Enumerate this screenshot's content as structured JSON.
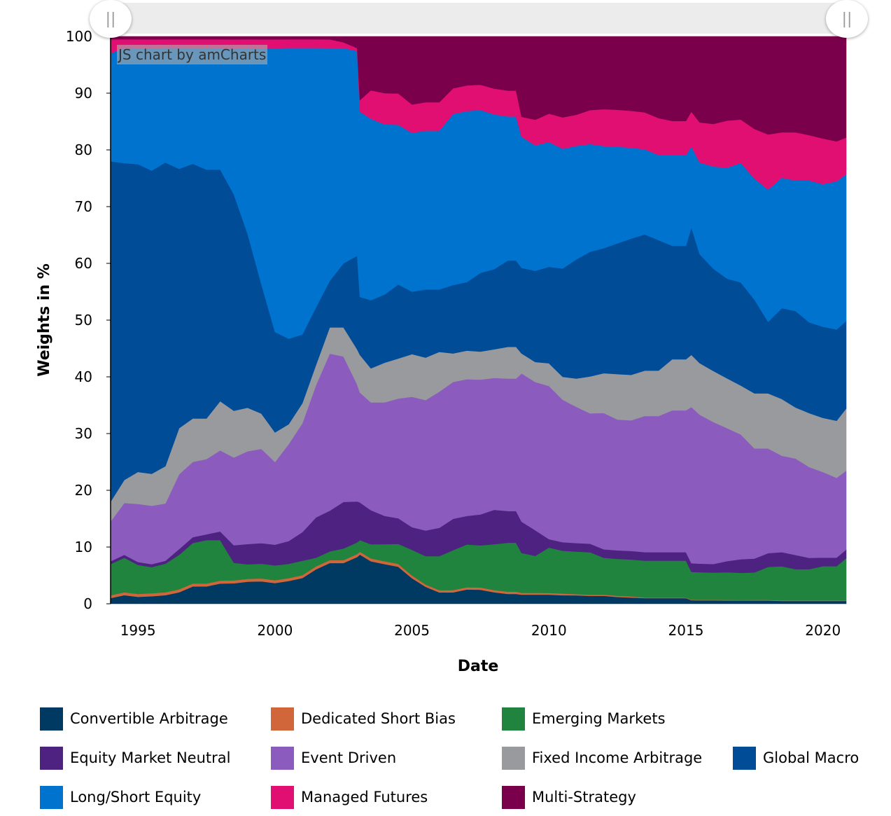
{
  "chart_data": {
    "type": "area",
    "stacked": true,
    "xlabel": "Date",
    "ylabel": "Weights in %",
    "xlim": [
      1994.0,
      2020.85
    ],
    "ylim": [
      0,
      100
    ],
    "xticks": [
      1995,
      2000,
      2005,
      2010,
      2015,
      2020
    ],
    "yticks": [
      0,
      10,
      20,
      30,
      40,
      50,
      60,
      70,
      80,
      90,
      100
    ],
    "legend_position": "bottom",
    "credit": "JS chart by amCharts",
    "x": [
      1994.0,
      1994.5,
      1995.0,
      1995.5,
      1996.0,
      1996.5,
      1997.0,
      1997.5,
      1998.0,
      1998.5,
      1999.0,
      1999.5,
      2000.0,
      2000.5,
      2001.0,
      2001.5,
      2002.0,
      2002.5,
      2003.0,
      2003.1,
      2003.5,
      2004.0,
      2004.5,
      2005.0,
      2005.5,
      2006.0,
      2006.5,
      2007.0,
      2007.5,
      2008.0,
      2008.5,
      2008.8,
      2009.0,
      2009.5,
      2010.0,
      2010.5,
      2011.0,
      2011.5,
      2012.0,
      2012.5,
      2013.0,
      2013.5,
      2014.0,
      2014.5,
      2015.0,
      2015.2,
      2015.5,
      2016.0,
      2016.5,
      2017.0,
      2017.5,
      2018.0,
      2018.5,
      2019.0,
      2019.5,
      2020.0,
      2020.5,
      2020.85
    ],
    "series": [
      {
        "name": "Convertible Arbitrage",
        "color": "#003a63",
        "values": [
          1.0,
          1.5,
          1.2,
          1.3,
          1.5,
          2.0,
          3.0,
          3.0,
          3.5,
          3.5,
          3.8,
          3.8,
          3.5,
          4.0,
          4.5,
          6.0,
          7.0,
          7.0,
          8.0,
          8.5,
          7.5,
          7.0,
          6.5,
          4.5,
          3.0,
          2.0,
          2.0,
          2.5,
          2.5,
          2.0,
          1.7,
          1.7,
          1.6,
          1.6,
          1.6,
          1.5,
          1.5,
          1.4,
          1.4,
          1.2,
          1.1,
          1.0,
          1.0,
          1.0,
          1.0,
          0.6,
          0.6,
          0.6,
          0.6,
          0.6,
          0.6,
          0.6,
          0.5,
          0.5,
          0.5,
          0.5,
          0.5,
          0.5
        ]
      },
      {
        "name": "Dedicated Short Bias",
        "color": "#d1663a",
        "values": [
          0.5,
          0.5,
          0.5,
          0.5,
          0.5,
          0.5,
          0.5,
          0.5,
          0.5,
          0.5,
          0.5,
          0.5,
          0.5,
          0.5,
          0.5,
          0.5,
          0.5,
          0.5,
          0.5,
          0.5,
          0.5,
          0.5,
          0.5,
          0.5,
          0.4,
          0.4,
          0.4,
          0.4,
          0.4,
          0.4,
          0.4,
          0.4,
          0.3,
          0.3,
          0.3,
          0.3,
          0.2,
          0.2,
          0.2,
          0.2,
          0.2,
          0.1,
          0.1,
          0.1,
          0.1,
          0.1,
          0.1,
          0.1,
          0.1,
          0.1,
          0.1,
          0.1,
          0.1,
          0.1,
          0.1,
          0.1,
          0.1,
          0.1
        ]
      },
      {
        "name": "Emerging Markets",
        "color": "#20833e",
        "values": [
          5.5,
          6.0,
          5.0,
          4.5,
          5.0,
          6.0,
          7.0,
          7.5,
          7.0,
          3.0,
          2.5,
          2.5,
          2.5,
          2.5,
          2.5,
          1.5,
          1.5,
          2.0,
          2.0,
          2.0,
          2.5,
          3.0,
          3.5,
          4.5,
          5.0,
          6.0,
          7.0,
          7.5,
          7.5,
          8.0,
          8.5,
          8.5,
          7.0,
          6.5,
          8.0,
          7.5,
          7.5,
          7.5,
          6.5,
          6.5,
          6.5,
          6.5,
          6.5,
          6.5,
          6.5,
          4.8,
          4.8,
          4.8,
          5.0,
          5.0,
          5.0,
          6.0,
          6.0,
          5.5,
          5.5,
          6.0,
          6.0,
          7.5
        ]
      },
      {
        "name": "Equity Market Neutral",
        "color": "#4e2280",
        "values": [
          0.5,
          0.5,
          0.5,
          0.5,
          0.5,
          1.0,
          1.0,
          1.0,
          1.5,
          3.0,
          3.5,
          3.5,
          3.5,
          4.0,
          5.0,
          7.0,
          7.0,
          8.0,
          7.0,
          6.5,
          6.0,
          5.0,
          4.5,
          4.0,
          4.5,
          5.0,
          5.5,
          5.0,
          5.5,
          6.0,
          5.5,
          5.5,
          5.5,
          4.5,
          1.5,
          1.5,
          1.5,
          1.5,
          1.5,
          1.5,
          1.5,
          1.5,
          1.5,
          1.5,
          1.5,
          1.5,
          1.5,
          1.5,
          2.0,
          2.5,
          2.5,
          2.5,
          2.5,
          2.5,
          2.0,
          1.5,
          1.5,
          1.5
        ]
      },
      {
        "name": "Event Driven",
        "color": "#8b5cbd",
        "values": [
          7.0,
          9.0,
          10.0,
          10.0,
          10.0,
          13.0,
          13.0,
          13.0,
          14.0,
          15.0,
          16.0,
          16.0,
          14.0,
          17.0,
          19.0,
          23.0,
          27.0,
          25.0,
          20.0,
          19.0,
          19.0,
          20.0,
          21.0,
          23.0,
          23.0,
          24.0,
          24.0,
          24.0,
          24.0,
          23.0,
          23.0,
          23.0,
          26.0,
          26.0,
          27.0,
          25.0,
          24.0,
          23.0,
          24.0,
          23.0,
          23.0,
          24.0,
          24.0,
          25.0,
          25.0,
          27.0,
          26.0,
          25.0,
          24.0,
          23.0,
          20.0,
          19.0,
          17.0,
          17.0,
          16.0,
          15.0,
          14.0,
          14.0
        ]
      },
      {
        "name": "Fixed Income Arbitrage",
        "color": "#999a9e",
        "values": [
          3.5,
          4.0,
          5.5,
          5.5,
          6.5,
          8.0,
          7.5,
          7.0,
          8.5,
          8.0,
          7.5,
          6.0,
          5.0,
          3.5,
          3.5,
          3.5,
          4.5,
          5.0,
          6.0,
          6.5,
          6.0,
          7.0,
          7.0,
          7.5,
          7.5,
          7.0,
          5.0,
          5.0,
          5.0,
          5.0,
          5.5,
          5.5,
          3.5,
          3.5,
          4.0,
          4.0,
          5.0,
          6.5,
          7.0,
          8.0,
          8.0,
          8.0,
          8.0,
          9.0,
          9.0,
          9.0,
          9.0,
          9.0,
          9.0,
          9.0,
          10.0,
          10.0,
          10.0,
          9.0,
          9.5,
          9.5,
          10.0,
          11.0
        ]
      },
      {
        "name": "Global Macro",
        "color": "#004c97",
        "values": [
          60.0,
          55.0,
          53.0,
          52.0,
          53.0,
          45.0,
          44.0,
          43.0,
          40.0,
          37.0,
          30.0,
          22.0,
          17.0,
          15.0,
          12.0,
          10.0,
          8.0,
          11.0,
          16.0,
          10.0,
          12.0,
          12.0,
          13.0,
          11.0,
          12.0,
          11.0,
          12.0,
          12.0,
          14.0,
          14.0,
          15.0,
          15.0,
          15.0,
          16.0,
          17.0,
          19.0,
          21.0,
          22.0,
          22.0,
          23.0,
          24.0,
          24.0,
          23.0,
          20.0,
          20.0,
          22.0,
          19.0,
          18.0,
          18.0,
          19.0,
          17.0,
          13.0,
          16.0,
          17.0,
          16.0,
          16.0,
          16.0,
          15.5
        ]
      },
      {
        "name": "Long/Short Equity",
        "color": "#0073cf",
        "values": [
          19.0,
          20.0,
          20.0,
          21.0,
          20.0,
          21.0,
          20.0,
          21.0,
          21.0,
          25.0,
          32.0,
          40.0,
          48.0,
          51.0,
          50.0,
          45.0,
          40.0,
          37.0,
          35.0,
          32.0,
          32.0,
          30.0,
          28.0,
          28.0,
          28.0,
          28.0,
          30.0,
          30.0,
          29.0,
          27.0,
          25.0,
          25.0,
          23.0,
          22.0,
          22.0,
          21.0,
          20.0,
          19.0,
          18.0,
          17.0,
          16.0,
          15.0,
          15.0,
          16.0,
          16.0,
          14.0,
          16.0,
          18.0,
          20.0,
          22.0,
          22.0,
          24.0,
          23.0,
          23.0,
          25.0,
          25.0,
          26.0,
          26.0
        ]
      },
      {
        "name": "Managed Futures",
        "color": "#e10f72",
        "values": [
          2.5,
          1.5,
          1.5,
          1.5,
          1.5,
          1.5,
          1.5,
          1.5,
          1.5,
          1.5,
          1.5,
          1.5,
          1.5,
          1.5,
          1.5,
          1.5,
          1.5,
          1.0,
          0.5,
          2.0,
          5.0,
          5.5,
          5.5,
          5.0,
          5.0,
          5.0,
          4.5,
          4.5,
          4.5,
          4.5,
          4.5,
          4.5,
          3.5,
          4.5,
          5.0,
          5.5,
          5.5,
          6.0,
          6.5,
          6.5,
          6.5,
          6.5,
          6.5,
          6.0,
          6.0,
          6.0,
          7.0,
          7.5,
          8.5,
          8.0,
          9.0,
          10.0,
          8.0,
          8.5,
          8.0,
          8.0,
          7.0,
          6.5
        ]
      },
      {
        "name": "Multi-Strategy",
        "color": "#7b004b",
        "values": [
          0.5,
          0.5,
          0.5,
          0.5,
          0.5,
          0.5,
          0.5,
          0.5,
          0.5,
          0.5,
          0.5,
          0.5,
          0.5,
          0.5,
          0.5,
          0.5,
          0.5,
          1.0,
          2.0,
          11.0,
          9.5,
          10.0,
          10.0,
          12.0,
          11.6,
          11.6,
          9.1,
          8.6,
          8.6,
          9.1,
          9.4,
          9.4,
          14.1,
          14.6,
          13.6,
          14.2,
          13.8,
          13.0,
          12.8,
          12.9,
          13.1,
          13.4,
          14.4,
          14.9,
          14.9,
          13.0,
          15.0,
          15.4,
          15.2,
          15.3,
          16.8,
          17.8,
          16.9,
          16.9,
          17.4,
          17.9,
          18.4,
          17.9
        ]
      }
    ]
  }
}
